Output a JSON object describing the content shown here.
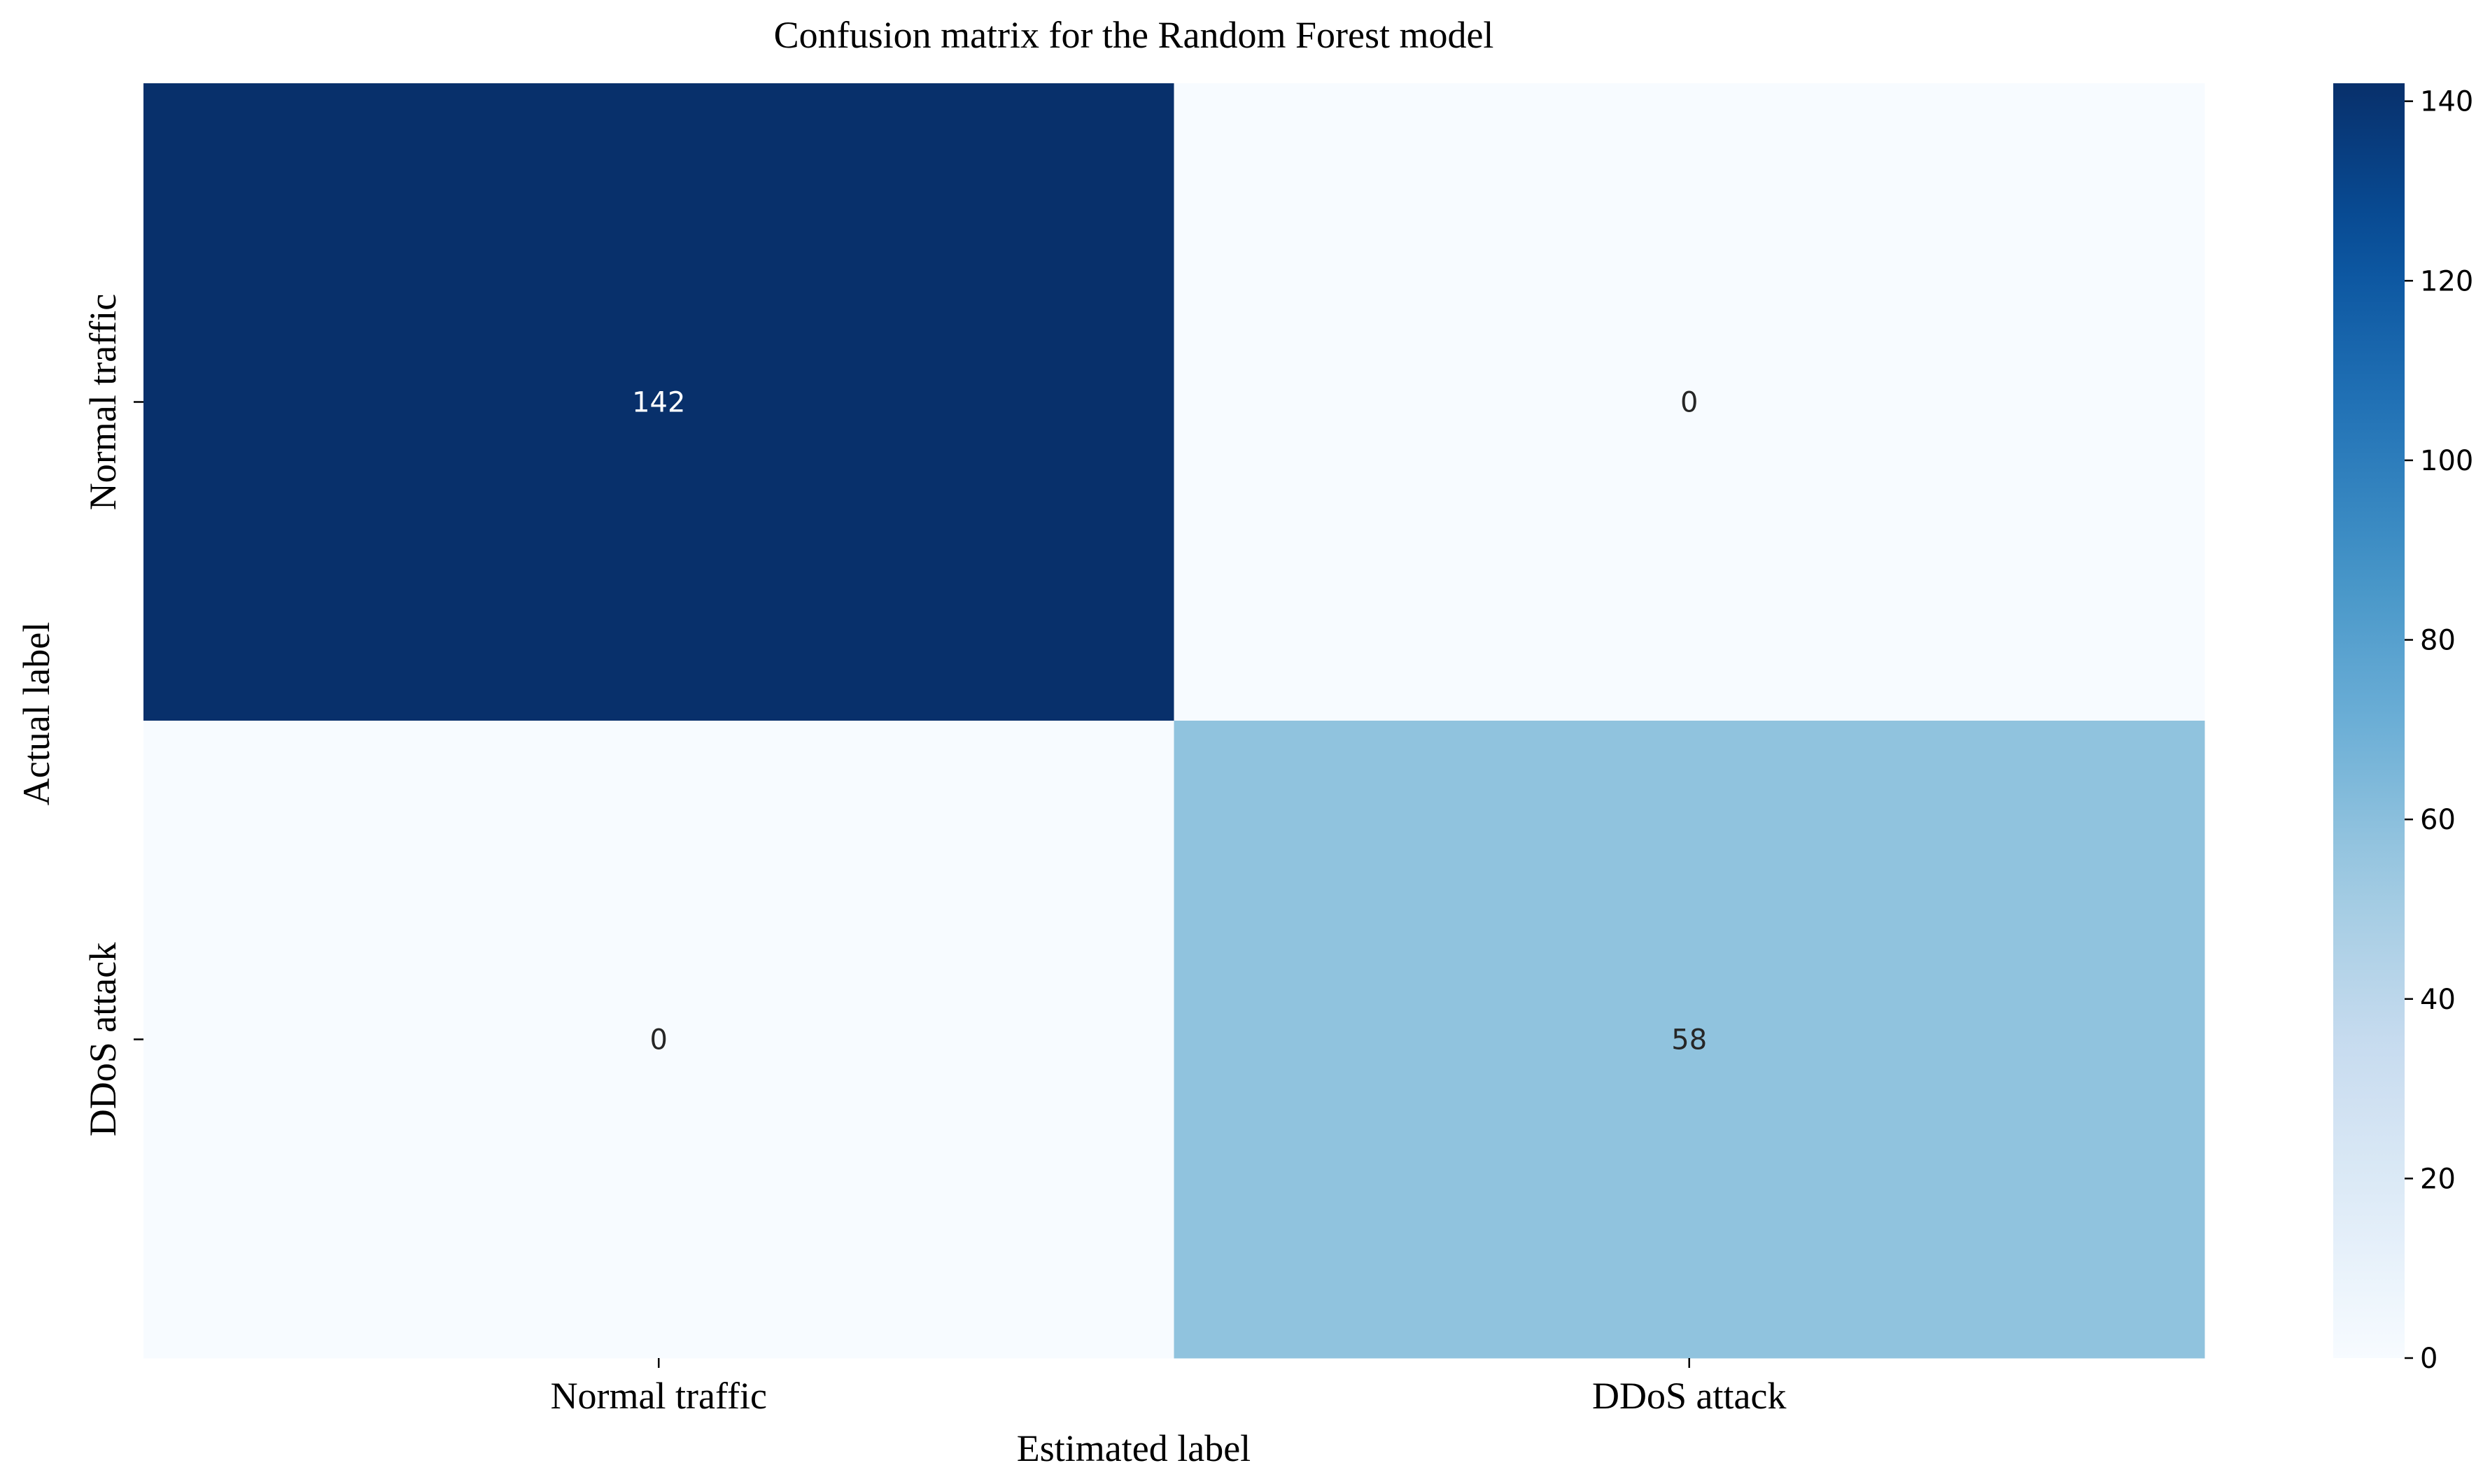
{
  "chart_data": {
    "type": "heatmap",
    "title": "Confusion matrix for the Random Forest model",
    "xlabel": "Estimated label",
    "ylabel": "Actual label",
    "x_categories": [
      "Normal traffic",
      "DDoS attack"
    ],
    "y_categories": [
      "Normal traffic",
      "DDoS attack"
    ],
    "values": [
      [
        142,
        0
      ],
      [
        0,
        58
      ]
    ],
    "colormap": "Blues",
    "colorbar": {
      "min": 0,
      "max": 142,
      "ticks": [
        0,
        20,
        40,
        60,
        80,
        100,
        120,
        140
      ],
      "tick_labels": [
        "0",
        "20",
        "40",
        "60",
        "80",
        "100",
        "120",
        "140"
      ]
    },
    "annotations": true,
    "grid": false,
    "legend": "none"
  }
}
